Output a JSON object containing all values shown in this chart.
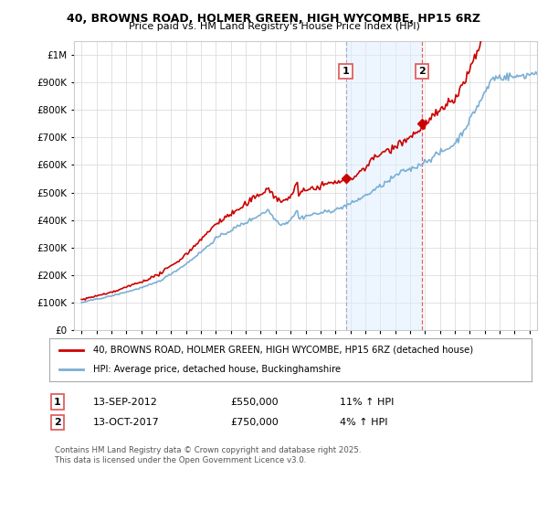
{
  "title": "40, BROWNS ROAD, HOLMER GREEN, HIGH WYCOMBE, HP15 6RZ",
  "subtitle": "Price paid vs. HM Land Registry's House Price Index (HPI)",
  "legend_line1": "40, BROWNS ROAD, HOLMER GREEN, HIGH WYCOMBE, HP15 6RZ (detached house)",
  "legend_line2": "HPI: Average price, detached house, Buckinghamshire",
  "footnote": "Contains HM Land Registry data © Crown copyright and database right 2025.\nThis data is licensed under the Open Government Licence v3.0.",
  "transaction1": {
    "label": "1",
    "date": "13-SEP-2012",
    "price": "£550,000",
    "hpi": "11% ↑ HPI"
  },
  "transaction2": {
    "label": "2",
    "date": "13-OCT-2017",
    "price": "£750,000",
    "hpi": "4% ↑ HPI"
  },
  "vline1_x": 2012.7,
  "vline2_x": 2017.78,
  "marker1_y": 550000,
  "marker2_y": 750000,
  "ylim": [
    0,
    1050000
  ],
  "xlim_start": 1994.5,
  "xlim_end": 2025.5,
  "hpi_color": "#7bafd4",
  "price_color": "#cc0000",
  "vline1_color": "#aaaacc",
  "vline2_color": "#e06060",
  "shading_color": "#ddeeff",
  "background_color": "#ffffff",
  "grid_color": "#dddddd"
}
